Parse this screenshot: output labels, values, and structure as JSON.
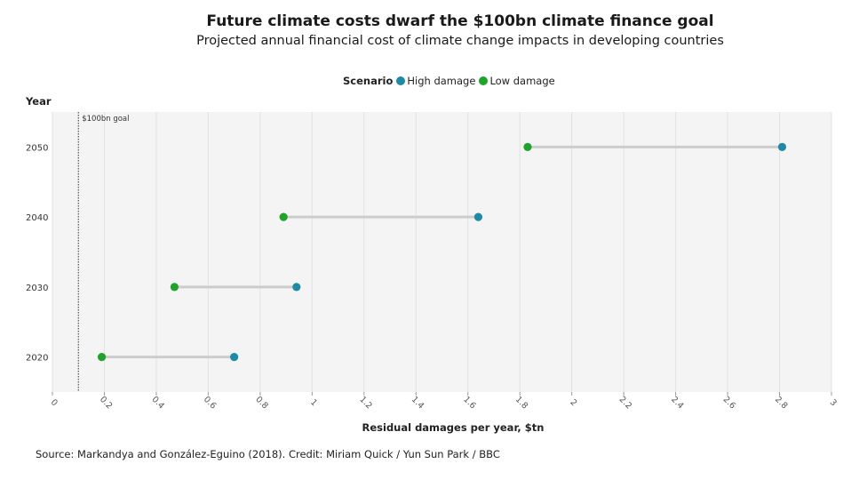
{
  "chart_data": {
    "type": "dumbbell",
    "title": "Future climate costs dwarf the $100bn climate finance goal",
    "subtitle": "Projected annual financial cost of climate change impacts in developing countries",
    "legend": {
      "title": "Scenario",
      "placement": "top-center",
      "entries": [
        {
          "name": "High damage",
          "color": "#1e8aa3"
        },
        {
          "name": "Low damage",
          "color": "#1fa32a"
        }
      ]
    },
    "ylabel": "Year",
    "xlabel": "Residual damages per year, $tn",
    "xlim": [
      0,
      3
    ],
    "xticks": [
      0,
      0.2,
      0.4,
      0.6,
      0.8,
      1,
      1.2,
      1.4,
      1.6,
      1.8,
      2,
      2.2,
      2.4,
      2.6,
      2.8,
      3
    ],
    "xtick_labels": [
      "0",
      "0.2",
      "0.4",
      "0.6",
      "0.8",
      "1",
      "1.2",
      "1.4",
      "1.6",
      "1.8",
      "2",
      "2.2",
      "2.4",
      "2.6",
      "2.8",
      "3"
    ],
    "categories": [
      "2050",
      "2040",
      "2030",
      "2020"
    ],
    "series": [
      {
        "name": "Low damage",
        "values": [
          1.83,
          0.89,
          0.47,
          0.19
        ]
      },
      {
        "name": "High damage",
        "values": [
          2.81,
          1.64,
          0.94,
          0.7
        ]
      }
    ],
    "reference_line": {
      "value": 0.1,
      "label": "$100bn goal"
    },
    "grid": true
  },
  "source": "Source: Markandya and González-Eguino (2018). Credit: Miriam Quick / Yun Sun Park / BBC"
}
